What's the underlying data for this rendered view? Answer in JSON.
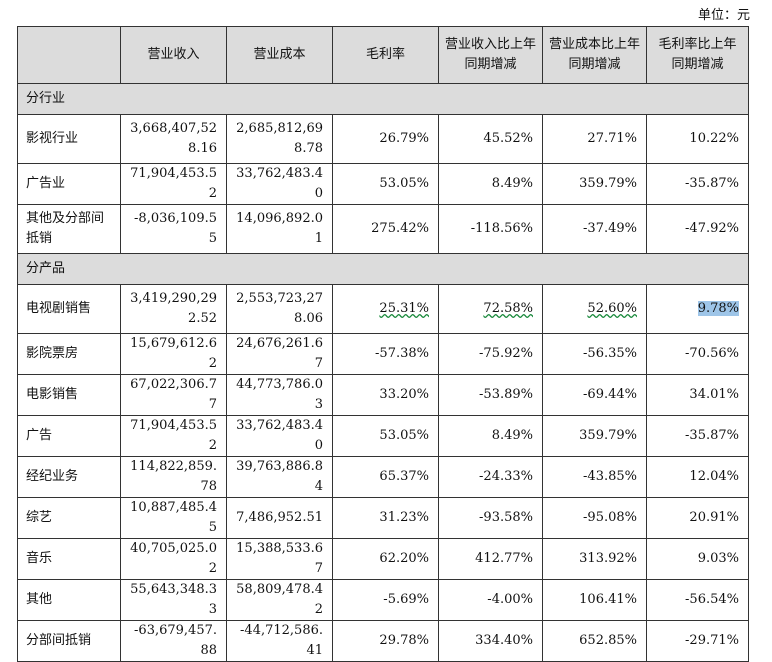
{
  "unit_label": "单位：元",
  "headers": [
    "",
    "营业收入",
    "营业成本",
    "毛利率",
    "营业收入比上年同期增减",
    "营业成本比上年同期增减",
    "毛利率比上年同期增减"
  ],
  "sections": [
    {
      "title": "分行业",
      "rows": [
        {
          "label": "影视行业",
          "revenue": "3,668,407,528.16",
          "cost": "2,685,812,698.78",
          "margin": "26.79%",
          "rev_chg": "45.52%",
          "cost_chg": "27.71%",
          "margin_chg": "10.22%"
        },
        {
          "label": "广告业",
          "revenue": "71,904,453.52",
          "cost": "33,762,483.40",
          "margin": "53.05%",
          "rev_chg": "8.49%",
          "cost_chg": "359.79%",
          "margin_chg": "-35.87%"
        },
        {
          "label": "其他及分部间抵销",
          "revenue": "-8,036,109.55",
          "cost": "14,096,892.01",
          "margin": "275.42%",
          "rev_chg": "-118.56%",
          "cost_chg": "-37.49%",
          "margin_chg": "-47.92%"
        }
      ]
    },
    {
      "title": "分产品",
      "rows": [
        {
          "label": "电视剧销售",
          "revenue": "3,419,290,292.52",
          "cost": "2,553,723,278.06",
          "margin": "25.31%",
          "rev_chg": "72.58%",
          "cost_chg": "52.60%",
          "margin_chg": "9.78%"
        },
        {
          "label": "影院票房",
          "revenue": "15,679,612.62",
          "cost": "24,676,261.67",
          "margin": "-57.38%",
          "rev_chg": "-75.92%",
          "cost_chg": "-56.35%",
          "margin_chg": "-70.56%"
        },
        {
          "label": "电影销售",
          "revenue": "67,022,306.77",
          "cost": "44,773,786.03",
          "margin": "33.20%",
          "rev_chg": "-53.89%",
          "cost_chg": "-69.44%",
          "margin_chg": "34.01%"
        },
        {
          "label": "广告",
          "revenue": "71,904,453.52",
          "cost": "33,762,483.40",
          "margin": "53.05%",
          "rev_chg": "8.49%",
          "cost_chg": "359.79%",
          "margin_chg": "-35.87%"
        },
        {
          "label": "经纪业务",
          "revenue": "114,822,859.78",
          "cost": "39,763,886.84",
          "margin": "65.37%",
          "rev_chg": "-24.33%",
          "cost_chg": "-43.85%",
          "margin_chg": "12.04%"
        },
        {
          "label": "综艺",
          "revenue": "10,887,485.45",
          "cost": "7,486,952.51",
          "margin": "31.23%",
          "rev_chg": "-93.58%",
          "cost_chg": "-95.08%",
          "margin_chg": "20.91%"
        },
        {
          "label": "音乐",
          "revenue": "40,705,025.02",
          "cost": "15,388,533.67",
          "margin": "62.20%",
          "rev_chg": "412.77%",
          "cost_chg": "313.92%",
          "margin_chg": "9.03%"
        },
        {
          "label": "其他",
          "revenue": "55,643,348.33",
          "cost": "58,809,478.42",
          "margin": "-5.69%",
          "rev_chg": "-4.00%",
          "cost_chg": "106.41%",
          "margin_chg": "-56.54%"
        },
        {
          "label": "分部间抵销",
          "revenue": "-63,679,457.88",
          "cost": "-44,712,586.41",
          "margin": "29.78%",
          "rev_chg": "334.40%",
          "cost_chg": "652.85%",
          "margin_chg": "-29.71%"
        }
      ]
    }
  ]
}
